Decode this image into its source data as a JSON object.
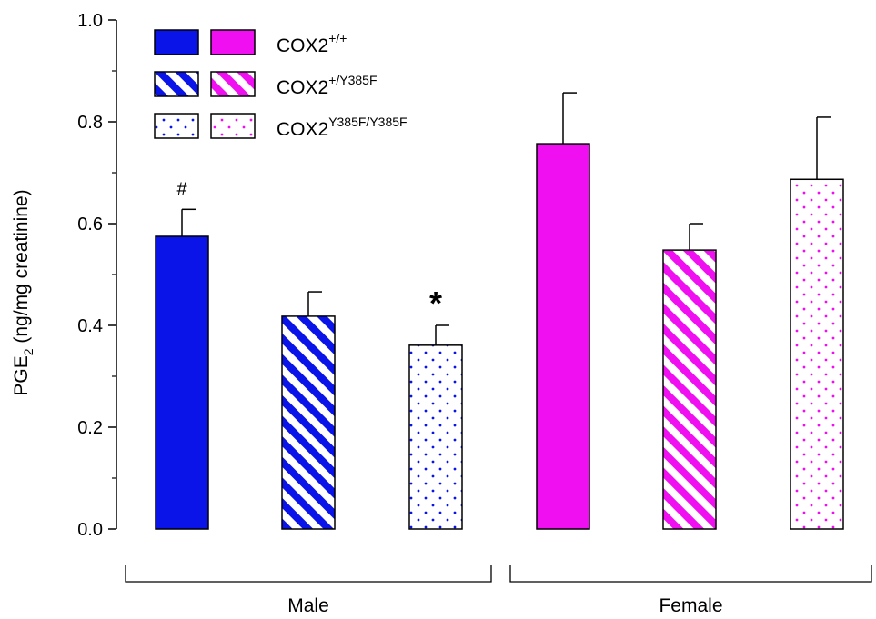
{
  "chart_data": {
    "type": "bar",
    "title": "",
    "ylabel": {
      "main": "PGE",
      "sub": "2",
      "rest": " (ng/mg creatinine)"
    },
    "ylim": [
      0,
      1.0
    ],
    "yticks": [
      "0.0",
      "0.2",
      "0.4",
      "0.6",
      "0.8",
      "1.0"
    ],
    "grid": false,
    "legend_position": "top-left",
    "groups": [
      "Male",
      "Female"
    ],
    "series": [
      {
        "name": "COX2",
        "sup": "+/+",
        "pattern": "solid"
      },
      {
        "name": "COX2",
        "sup": "+/Y385F",
        "pattern": "stripes"
      },
      {
        "name": "COX2",
        "sup": "Y385F/Y385F",
        "pattern": "dots"
      }
    ],
    "colors": {
      "Male": "#0a14e8",
      "Female": "#f00ff0"
    },
    "bars": [
      {
        "group": "Male",
        "series": 0,
        "value": 0.575,
        "error": 0.053,
        "annotation": "#"
      },
      {
        "group": "Male",
        "series": 1,
        "value": 0.418,
        "error": 0.048,
        "annotation": ""
      },
      {
        "group": "Male",
        "series": 2,
        "value": 0.361,
        "error": 0.039,
        "annotation": "*"
      },
      {
        "group": "Female",
        "series": 0,
        "value": 0.757,
        "error": 0.1,
        "annotation": ""
      },
      {
        "group": "Female",
        "series": 1,
        "value": 0.548,
        "error": 0.052,
        "annotation": ""
      },
      {
        "group": "Female",
        "series": 2,
        "value": 0.687,
        "error": 0.122,
        "annotation": ""
      }
    ]
  }
}
